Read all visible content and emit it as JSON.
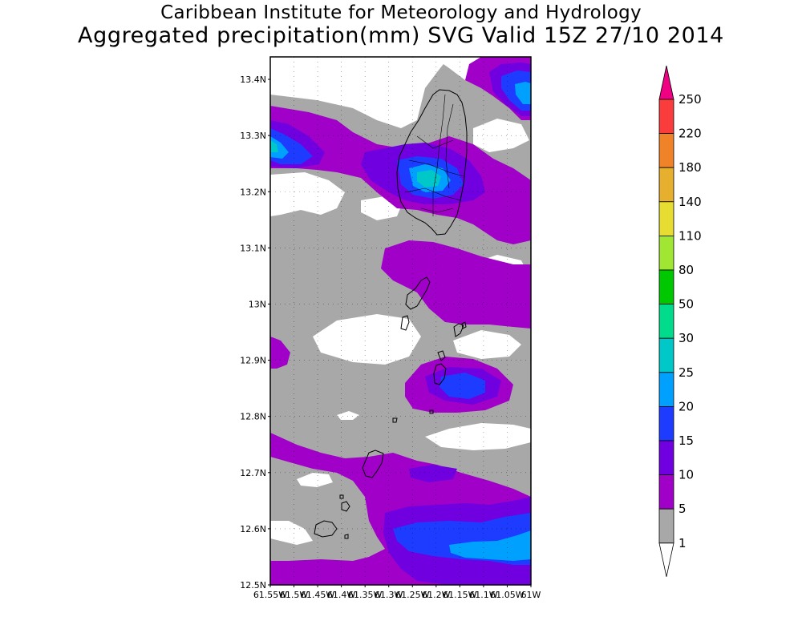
{
  "title": {
    "line1": "Caribbean Institute for Meteorology and Hydrology",
    "line2": "Aggregated precipitation(mm) SVG Valid 15Z 27/10 2014"
  },
  "map": {
    "lat_labels": [
      "13.4N",
      "13.3N",
      "13.2N",
      "13.1N",
      "13N",
      "12.9N",
      "12.8N",
      "12.7N",
      "12.6N",
      "12.5N"
    ],
    "lon_labels": [
      "61.55W",
      "61.5W",
      "61.45W",
      "61.4W",
      "61.35W",
      "61.3W",
      "61.25W",
      "61.2W",
      "61.15W",
      "61.1W",
      "61.05W",
      "61W"
    ],
    "lat_range": [
      12.5,
      13.44
    ],
    "lon_range": [
      -61.55,
      -61.0
    ]
  },
  "legend": {
    "levels": [
      "1",
      "5",
      "10",
      "15",
      "20",
      "25",
      "30",
      "50",
      "80",
      "110",
      "140",
      "180",
      "220",
      "250"
    ],
    "colors": [
      "#ffffff",
      "#a8a8a8",
      "#a000c8",
      "#7000e0",
      "#1e3cff",
      "#00a0ff",
      "#00c8c8",
      "#00dc8c",
      "#00c800",
      "#a0e632",
      "#e6dc32",
      "#e6af2d",
      "#f08228",
      "#fa3c3c",
      "#f00082"
    ]
  }
}
